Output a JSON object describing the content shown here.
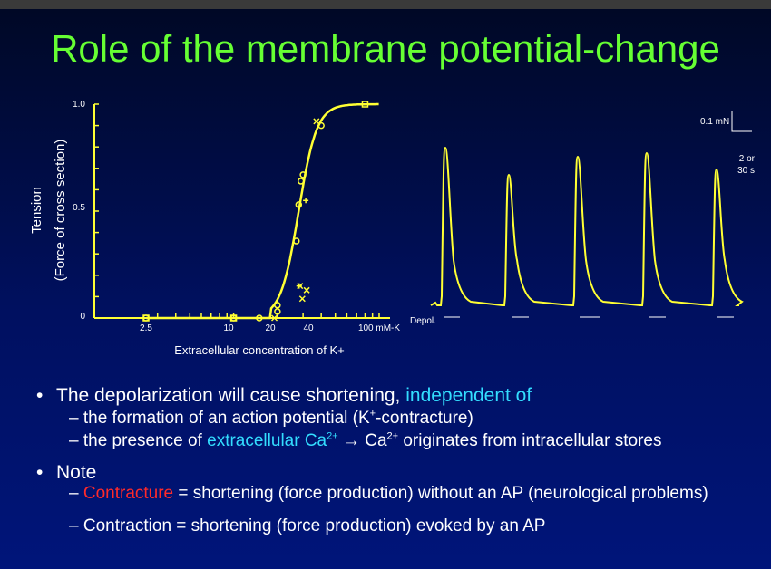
{
  "title": "Role of the membrane potential-change",
  "chart_data": [
    {
      "type": "scatter",
      "ylabel_line1": "Tension",
      "ylabel_line2": "(Force of cross section)",
      "xlabel": "Extracellular concentration of K+",
      "x_scale": "log",
      "y_ticks": [
        "1.0",
        "0.5",
        "0"
      ],
      "x_ticks": [
        "2.5",
        "10",
        "20",
        "40",
        "100 mM-K"
      ],
      "ylim": [
        0,
        1.0
      ],
      "points_circle": [
        [
          2.5,
          0
        ],
        [
          10,
          0
        ],
        [
          15,
          0
        ],
        [
          20,
          0.06
        ],
        [
          20,
          0.03
        ],
        [
          27,
          0.36
        ],
        [
          28,
          0.53
        ],
        [
          29,
          0.64
        ],
        [
          30,
          0.67
        ],
        [
          40,
          0.9
        ]
      ],
      "points_square": [
        [
          2.5,
          0
        ],
        [
          10,
          0
        ],
        [
          80,
          1.0
        ]
      ],
      "points_cross": [
        [
          18,
          0
        ],
        [
          27,
          0.15
        ],
        [
          28,
          0.09
        ],
        [
          30,
          0.13
        ],
        [
          35,
          0.92
        ]
      ],
      "points_plus": [
        [
          27,
          0.15
        ],
        [
          30,
          0.55
        ]
      ],
      "color": "#ffff33"
    },
    {
      "type": "line",
      "series_label": "Depol.",
      "scale_force": "0.1 mN",
      "scale_time_line1": "2 or",
      "scale_time_line2": "30 s",
      "peaks": [
        0.87,
        0.72,
        0.82,
        0.84,
        0.75
      ],
      "color": "#ffff33"
    }
  ],
  "bullets": {
    "b1_pre": "The depolarization will cause shortening, ",
    "b1_cyan": "independent of",
    "sub1": "the formation of an action potential (K",
    "sub1_sup": "+",
    "sub1_end": "-contracture)",
    "sub2_pre": "the presence of ",
    "sub2_cyan": "extracellular Ca",
    "sub2_sup1": "2+",
    "sub2_arrow": " → Ca",
    "sub2_sup2": "2+",
    "sub2_end": " originates from intracellular stores",
    "b2": "Note",
    "sub3_red": "Contracture",
    "sub3_end": " = shortening (force production) without an AP (neurological problems)",
    "sub4": "Contraction = shortening (force production) evoked by an AP"
  }
}
